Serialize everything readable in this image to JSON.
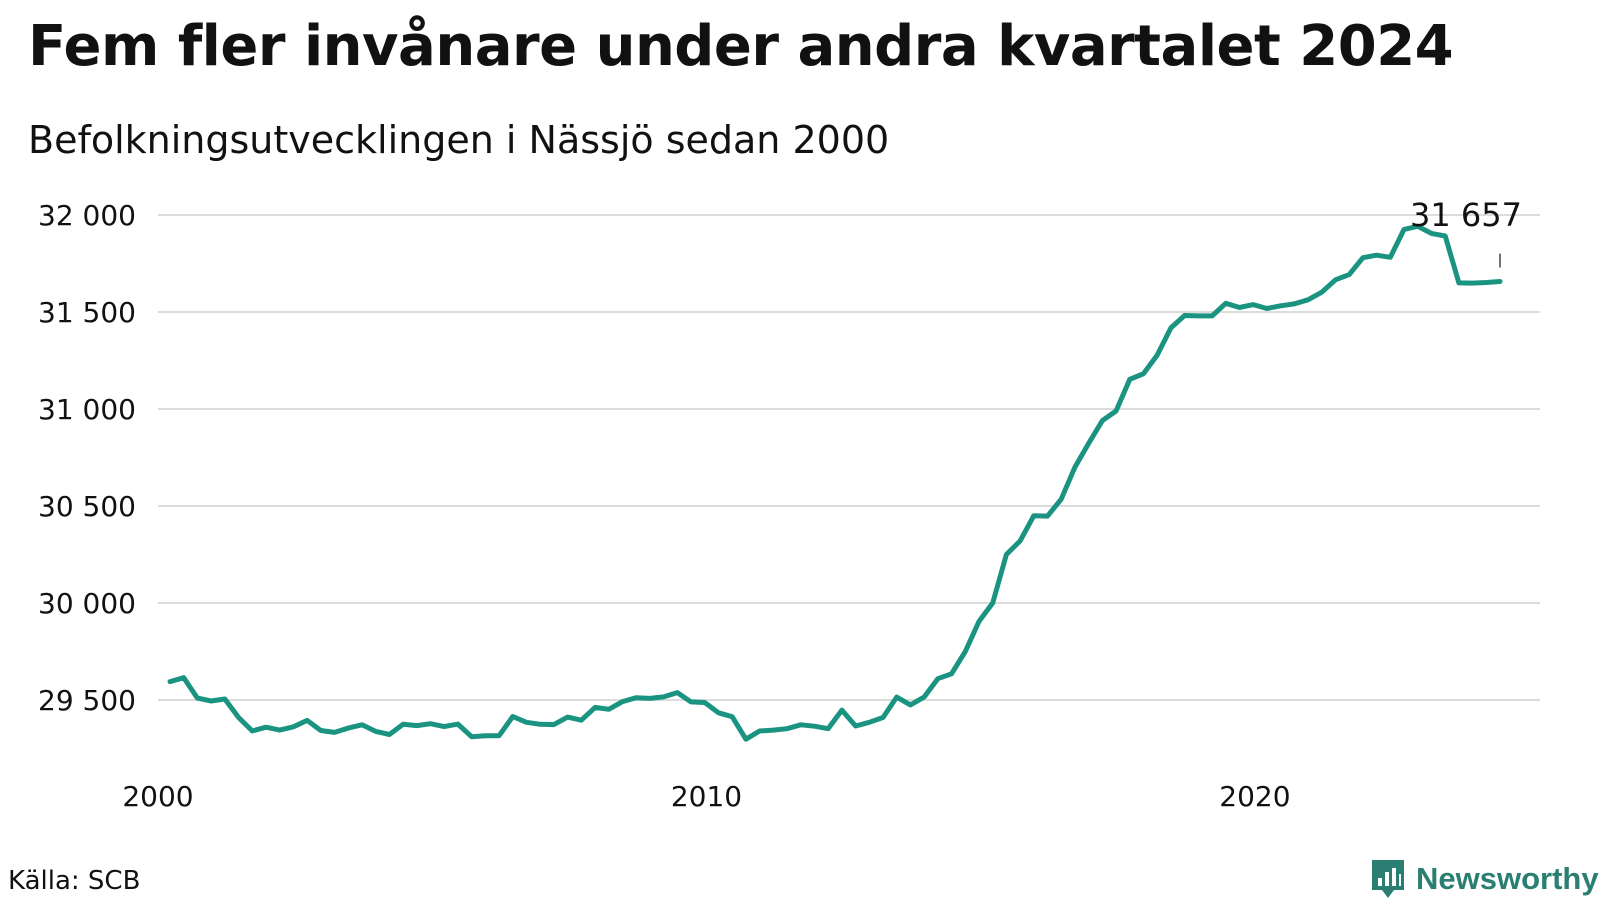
{
  "header": {
    "title": "Fem fler invånare under andra kvartalet 2024",
    "subtitle": "Befolkningsutvecklingen i Nässjö sedan 2000"
  },
  "footer": {
    "source": "Källa: SCB",
    "brand": "Newsworthy"
  },
  "colors": {
    "line": "#1a9480",
    "grid": "#dcdcdc",
    "brand": "#2a7f72"
  },
  "icons": {
    "brand_logo": "bar-chart-icon"
  },
  "chart_data": {
    "type": "line",
    "title": "Fem fler invånare under andra kvartalet 2024",
    "subtitle": "Befolkningsutvecklingen i Nässjö sedan 2000",
    "xlabel": "",
    "ylabel": "",
    "x_range": [
      2000.0,
      2024.25
    ],
    "ylim": [
      29200,
      32000
    ],
    "y_ticks": [
      {
        "value": 29500,
        "label": "29 500"
      },
      {
        "value": 30000,
        "label": "30 000"
      },
      {
        "value": 30500,
        "label": "30 500"
      },
      {
        "value": 31000,
        "label": "31 000"
      },
      {
        "value": 31500,
        "label": "31 500"
      },
      {
        "value": 32000,
        "label": "32 000"
      }
    ],
    "x_ticks": [
      {
        "value": 2000,
        "label": "2000"
      },
      {
        "value": 2010,
        "label": "2010"
      },
      {
        "value": 2020,
        "label": "2020"
      }
    ],
    "grid": true,
    "annotation": {
      "x": 2024.25,
      "y": 31657,
      "label": "31 657"
    },
    "series": [
      {
        "values": [
          {
            "x": 2000.0,
            "y": 29595
          },
          {
            "x": 2000.25,
            "y": 29615
          },
          {
            "x": 2000.5,
            "y": 29510
          },
          {
            "x": 2000.75,
            "y": 29495
          },
          {
            "x": 2001.0,
            "y": 29505
          },
          {
            "x": 2001.25,
            "y": 29410
          },
          {
            "x": 2001.5,
            "y": 29340
          },
          {
            "x": 2001.75,
            "y": 29360
          },
          {
            "x": 2002.0,
            "y": 29345
          },
          {
            "x": 2002.25,
            "y": 29362
          },
          {
            "x": 2002.5,
            "y": 29395
          },
          {
            "x": 2002.75,
            "y": 29343
          },
          {
            "x": 2003.0,
            "y": 29333
          },
          {
            "x": 2003.25,
            "y": 29355
          },
          {
            "x": 2003.5,
            "y": 29372
          },
          {
            "x": 2003.75,
            "y": 29338
          },
          {
            "x": 2004.0,
            "y": 29322
          },
          {
            "x": 2004.25,
            "y": 29375
          },
          {
            "x": 2004.5,
            "y": 29368
          },
          {
            "x": 2004.75,
            "y": 29378
          },
          {
            "x": 2005.0,
            "y": 29363
          },
          {
            "x": 2005.25,
            "y": 29376
          },
          {
            "x": 2005.5,
            "y": 29311
          },
          {
            "x": 2005.75,
            "y": 29316
          },
          {
            "x": 2006.0,
            "y": 29316
          },
          {
            "x": 2006.25,
            "y": 29415
          },
          {
            "x": 2006.5,
            "y": 29385
          },
          {
            "x": 2006.75,
            "y": 29375
          },
          {
            "x": 2007.0,
            "y": 29373
          },
          {
            "x": 2007.25,
            "y": 29412
          },
          {
            "x": 2007.5,
            "y": 29396
          },
          {
            "x": 2007.75,
            "y": 29462
          },
          {
            "x": 2008.0,
            "y": 29452
          },
          {
            "x": 2008.25,
            "y": 29492
          },
          {
            "x": 2008.5,
            "y": 29512
          },
          {
            "x": 2008.75,
            "y": 29508
          },
          {
            "x": 2009.0,
            "y": 29516
          },
          {
            "x": 2009.25,
            "y": 29538
          },
          {
            "x": 2009.5,
            "y": 29490
          },
          {
            "x": 2009.75,
            "y": 29487
          },
          {
            "x": 2010.0,
            "y": 29434
          },
          {
            "x": 2010.25,
            "y": 29414
          },
          {
            "x": 2010.5,
            "y": 29298
          },
          {
            "x": 2010.75,
            "y": 29340
          },
          {
            "x": 2011.0,
            "y": 29345
          },
          {
            "x": 2011.25,
            "y": 29352
          },
          {
            "x": 2011.5,
            "y": 29372
          },
          {
            "x": 2011.75,
            "y": 29365
          },
          {
            "x": 2012.0,
            "y": 29352
          },
          {
            "x": 2012.25,
            "y": 29448
          },
          {
            "x": 2012.5,
            "y": 29366
          },
          {
            "x": 2012.75,
            "y": 29385
          },
          {
            "x": 2013.0,
            "y": 29410
          },
          {
            "x": 2013.25,
            "y": 29515
          },
          {
            "x": 2013.5,
            "y": 29475
          },
          {
            "x": 2013.75,
            "y": 29515
          },
          {
            "x": 2014.0,
            "y": 29610
          },
          {
            "x": 2014.25,
            "y": 29635
          },
          {
            "x": 2014.5,
            "y": 29750
          },
          {
            "x": 2014.75,
            "y": 29905
          },
          {
            "x": 2015.0,
            "y": 30000
          },
          {
            "x": 2015.25,
            "y": 30250
          },
          {
            "x": 2015.5,
            "y": 30320
          },
          {
            "x": 2015.75,
            "y": 30450
          },
          {
            "x": 2016.0,
            "y": 30448
          },
          {
            "x": 2016.25,
            "y": 30535
          },
          {
            "x": 2016.5,
            "y": 30700
          },
          {
            "x": 2016.75,
            "y": 30823
          },
          {
            "x": 2017.0,
            "y": 30940
          },
          {
            "x": 2017.25,
            "y": 30990
          },
          {
            "x": 2017.5,
            "y": 31153
          },
          {
            "x": 2017.75,
            "y": 31182
          },
          {
            "x": 2018.0,
            "y": 31278
          },
          {
            "x": 2018.25,
            "y": 31418
          },
          {
            "x": 2018.5,
            "y": 31482
          },
          {
            "x": 2018.75,
            "y": 31480
          },
          {
            "x": 2019.0,
            "y": 31480
          },
          {
            "x": 2019.25,
            "y": 31545
          },
          {
            "x": 2019.5,
            "y": 31523
          },
          {
            "x": 2019.75,
            "y": 31538
          },
          {
            "x": 2020.0,
            "y": 31518
          },
          {
            "x": 2020.25,
            "y": 31532
          },
          {
            "x": 2020.5,
            "y": 31542
          },
          {
            "x": 2020.75,
            "y": 31563
          },
          {
            "x": 2021.0,
            "y": 31602
          },
          {
            "x": 2021.25,
            "y": 31666
          },
          {
            "x": 2021.5,
            "y": 31693
          },
          {
            "x": 2021.75,
            "y": 31780
          },
          {
            "x": 2022.0,
            "y": 31793
          },
          {
            "x": 2022.25,
            "y": 31782
          },
          {
            "x": 2022.5,
            "y": 31926
          },
          {
            "x": 2022.75,
            "y": 31942
          },
          {
            "x": 2023.0,
            "y": 31905
          },
          {
            "x": 2023.25,
            "y": 31892
          },
          {
            "x": 2023.5,
            "y": 31650
          },
          {
            "x": 2023.75,
            "y": 31649
          },
          {
            "x": 2024.0,
            "y": 31652
          },
          {
            "x": 2024.25,
            "y": 31657
          }
        ]
      }
    ]
  }
}
